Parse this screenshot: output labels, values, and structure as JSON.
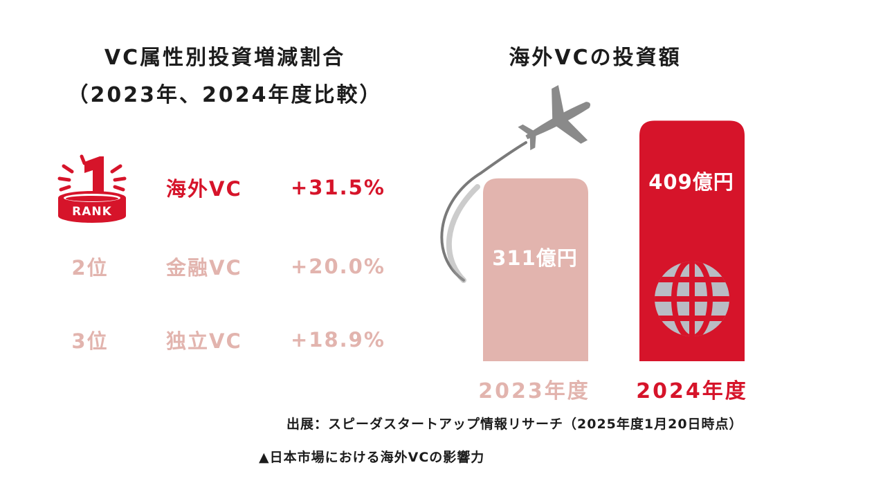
{
  "left_title": {
    "line1": "VC属性別投資増減割合",
    "line2": "（2023年、2024年度比較）"
  },
  "ranking": {
    "badge_rank_number": "1",
    "badge_text": "RANK",
    "rows": [
      {
        "rank": "1位",
        "name": "海外VC",
        "value": "+31.5%"
      },
      {
        "rank": "2位",
        "name": "金融VC",
        "value": "+20.0%"
      },
      {
        "rank": "3位",
        "name": "独立VC",
        "value": "+18.9%"
      }
    ]
  },
  "right_title": "海外VCの投資額",
  "chart_data": {
    "type": "bar",
    "title": "海外VCの投資額",
    "categories": [
      "2023年度",
      "2024年度"
    ],
    "values": [
      311,
      409
    ],
    "unit": "億円",
    "value_labels": [
      "311億円",
      "409億円"
    ],
    "colors": [
      "#e2b4ae",
      "#d6142a"
    ]
  },
  "source_note": "出展：スピーダスタートアップ情報リサーチ（2025年度1月20日時点）",
  "caption": "▲日本市場における海外VCの影響力",
  "icons": [
    "rank-badge-icon",
    "airplane-icon",
    "globe-icon"
  ]
}
